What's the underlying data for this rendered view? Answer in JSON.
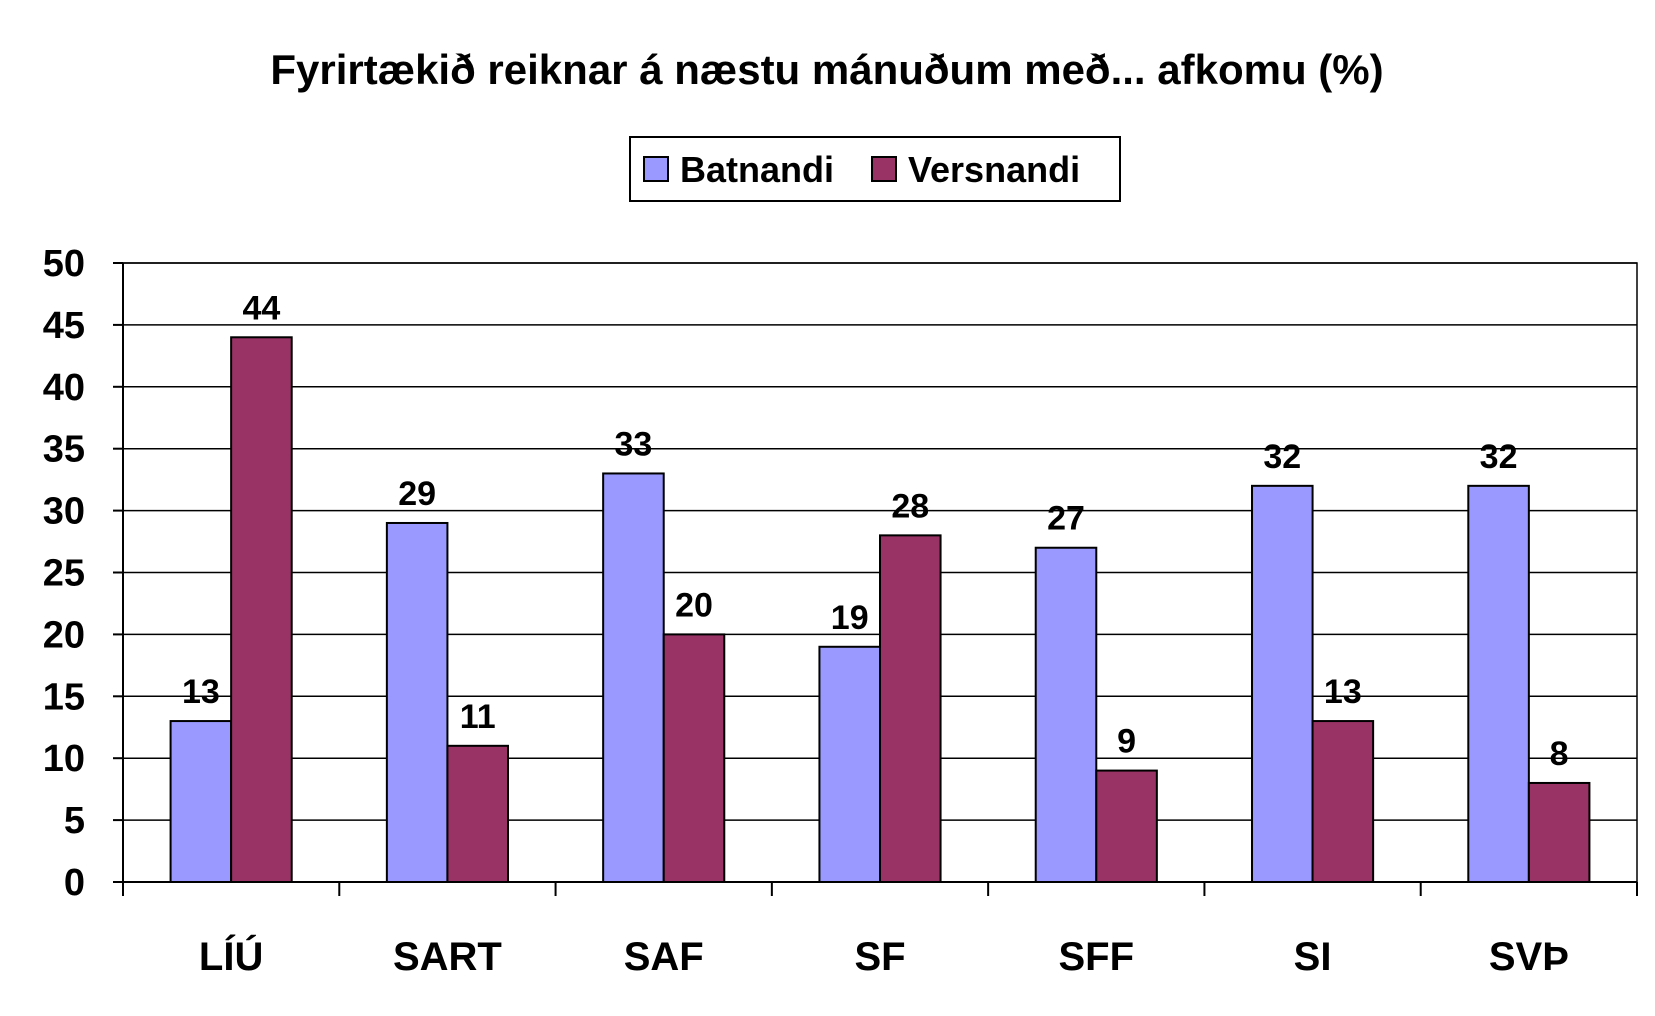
{
  "chart_data": {
    "type": "bar",
    "title": "Fyrirtækið reiknar á næstu mánuðum með... afkomu (%)",
    "xlabel": "",
    "ylabel": "",
    "categories": [
      "LÍÚ",
      "SART",
      "SAF",
      "SF",
      "SFF",
      "SI",
      "SVÞ"
    ],
    "series": [
      {
        "name": "Batnandi",
        "color": "#9999ff",
        "values": [
          13,
          29,
          33,
          19,
          27,
          32,
          32
        ]
      },
      {
        "name": "Versnandi",
        "color": "#993366",
        "values": [
          44,
          11,
          20,
          28,
          9,
          13,
          8
        ]
      }
    ],
    "ylim": [
      0,
      50
    ],
    "yticks": [
      0,
      5,
      10,
      15,
      20,
      25,
      30,
      35,
      40,
      45,
      50
    ],
    "grid": true,
    "legend": "top-center",
    "data_labels": true
  }
}
